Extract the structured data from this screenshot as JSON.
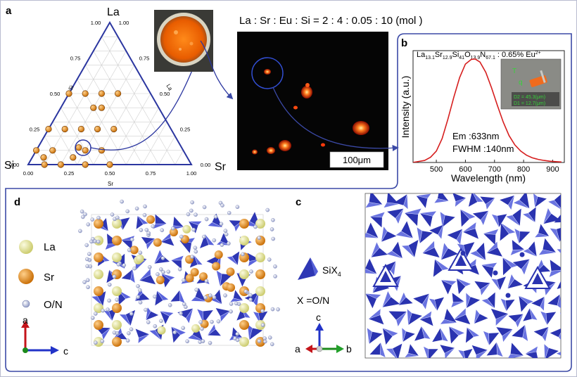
{
  "panels": {
    "a": {
      "letter": "a",
      "vertex_top": "La",
      "vertex_left": "Si",
      "vertex_right": "Sr",
      "axis_si": "Si",
      "axis_la": "La",
      "axis_sr": "Sr",
      "ticks_left": [
        "0.00",
        "0.25",
        "0.50",
        "0.75",
        "1.00"
      ],
      "ticks_right": [
        "1.00",
        "0.75",
        "0.50",
        "0.25",
        "0.00"
      ],
      "ticks_bottom": [
        "0.00",
        "0.25",
        "0.50",
        "0.75",
        "1.00"
      ],
      "ratio_label": "La : Sr : Eu : Si = 2 : 4 : 0.05 : 10 (mol )",
      "scale_bar": "100μm"
    },
    "b": {
      "letter": "b",
      "formula": "La13.1Sr12.9Si41O13.9N67.1 : 0.65% Eu2+",
      "formula_parts": {
        "p1": "La",
        "s1": "13.1",
        "p2": "Sr",
        "s2": "12.9",
        "p3": "Si",
        "s3": "41",
        "p4": "O",
        "s4": "13.9",
        "p5": "N",
        "s5": "67.1",
        "p6": " : 0.65% Eu",
        "sup": "2+"
      },
      "em": "Em :633nm",
      "fwhm": "FWHM :140nm",
      "inset_d2": "D2 = 45.3(μm)",
      "inset_d1": "D1 = 12.7(μm)",
      "inset_mark_t": "T",
      "inset_mark_q": "q"
    },
    "d": {
      "letter": "d",
      "legend": [
        "La",
        "Sr",
        "O/N"
      ],
      "axis_a": "a",
      "axis_c": "c"
    },
    "c": {
      "letter": "c",
      "six4_base": "SiX",
      "six4_sub": "4",
      "x_def": "X =O/N",
      "axis_c": "c",
      "axis_a": "a",
      "axis_b": "b"
    }
  },
  "colors": {
    "frame": "#3b49a6",
    "spectrum": "#d61e1e",
    "tetra": "#2e37b4",
    "la_atom": "#e3e39a",
    "sr_atom": "#e08a1e",
    "on_atom": "#c9d0e8"
  },
  "chart_data": [
    {
      "type": "scatter",
      "subtype": "ternary",
      "axes": [
        "Si",
        "La",
        "Sr"
      ],
      "ticks": [
        "0.00",
        "0.25",
        "0.50",
        "0.75",
        "1.00"
      ],
      "points_si_la_sr": [
        [
          0.5,
          0.5,
          0.0
        ],
        [
          0.4,
          0.5,
          0.1
        ],
        [
          0.3,
          0.5,
          0.2
        ],
        [
          0.2,
          0.5,
          0.3
        ],
        [
          0.4,
          0.4,
          0.2
        ],
        [
          0.35,
          0.4,
          0.25
        ],
        [
          0.75,
          0.25,
          0.0
        ],
        [
          0.65,
          0.25,
          0.1
        ],
        [
          0.55,
          0.25,
          0.2
        ],
        [
          0.45,
          0.25,
          0.3
        ],
        [
          0.35,
          0.25,
          0.4
        ],
        [
          0.9,
          0.1,
          0.0
        ],
        [
          0.8,
          0.1,
          0.1
        ],
        [
          0.6,
          0.1,
          0.3
        ],
        [
          0.5,
          0.1,
          0.4
        ],
        [
          0.88,
          0.05,
          0.07
        ],
        [
          0.7,
          0.05,
          0.25
        ],
        [
          0.9,
          0.0,
          0.1
        ],
        [
          0.8,
          0.0,
          0.2
        ],
        [
          0.65,
          0.0,
          0.35
        ],
        [
          0.5,
          0.0,
          0.5
        ]
      ],
      "highlight_si_la_sr": [
        0.63,
        0.12,
        0.25
      ]
    },
    {
      "type": "line",
      "xlabel": "Wavelength (nm)",
      "ylabel": "Intensity (a.u.)",
      "xlim": [
        420,
        940
      ],
      "xticks": [
        500,
        600,
        700,
        800,
        900
      ],
      "ylim": [
        0,
        1.08
      ],
      "series": [
        {
          "x": [
            420,
            440,
            460,
            480,
            500,
            520,
            540,
            560,
            580,
            600,
            620,
            633,
            650,
            670,
            690,
            710,
            730,
            750,
            770,
            790,
            810,
            830,
            850,
            870,
            890,
            910,
            930
          ],
          "values": [
            0.0,
            0.01,
            0.02,
            0.05,
            0.11,
            0.23,
            0.42,
            0.63,
            0.82,
            0.95,
            0.995,
            1.0,
            0.97,
            0.87,
            0.72,
            0.55,
            0.39,
            0.26,
            0.17,
            0.11,
            0.07,
            0.045,
            0.03,
            0.02,
            0.012,
            0.008,
            0.005
          ]
        }
      ]
    }
  ]
}
